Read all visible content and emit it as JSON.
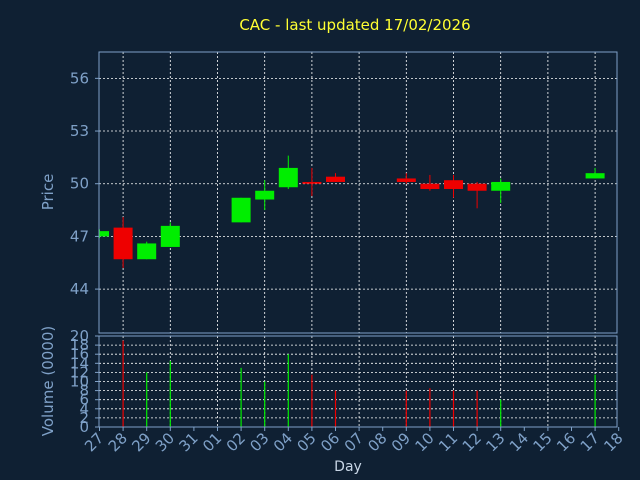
{
  "chart_data": {
    "type": "candlestick",
    "title": "CAC - last updated 17/02/2026",
    "price_panel": {
      "ylabel": "Price",
      "ylim": [
        41.5,
        57.5
      ],
      "yticks": [
        44,
        47,
        50,
        53,
        56
      ]
    },
    "volume_panel": {
      "ylabel": "Volume (0000)",
      "ylim": [
        0,
        20
      ],
      "yticks": [
        0,
        2,
        4,
        6,
        8,
        10,
        12,
        14,
        16,
        18,
        20
      ]
    },
    "xlabel": "Day",
    "x_tick_labels": [
      "27",
      "28",
      "29",
      "30",
      "31",
      "01",
      "02",
      "03",
      "04",
      "05",
      "06",
      "07",
      "08",
      "09",
      "10",
      "11",
      "12",
      "13",
      "14",
      "15",
      "16",
      "17",
      "18"
    ],
    "grid": true,
    "colors": {
      "background": "#0f2033",
      "axes": "#7fa1c8",
      "up": "#00ee00",
      "down": "#ee0000",
      "title": "#ffff33",
      "grid": "#ffffff"
    },
    "candles": [
      {
        "day": "27",
        "open": 47.0,
        "high": 47.4,
        "low": 46.9,
        "close": 47.3
      },
      {
        "day": "28",
        "open": 47.5,
        "high": 48.1,
        "low": 45.2,
        "close": 45.7
      },
      {
        "day": "29",
        "open": 45.7,
        "high": 46.7,
        "low": 45.7,
        "close": 46.6
      },
      {
        "day": "30",
        "open": 46.4,
        "high": 47.8,
        "low": 46.4,
        "close": 47.6
      },
      {
        "day": "02",
        "open": 47.8,
        "high": 49.2,
        "low": 47.8,
        "close": 49.2
      },
      {
        "day": "03",
        "open": 49.1,
        "high": 50.2,
        "low": 48.5,
        "close": 49.6
      },
      {
        "day": "04",
        "open": 49.8,
        "high": 51.6,
        "low": 49.7,
        "close": 50.9
      },
      {
        "day": "05",
        "open": 50.1,
        "high": 50.9,
        "low": 49.3,
        "close": 50.0
      },
      {
        "day": "06",
        "open": 50.4,
        "high": 50.6,
        "low": 50.1,
        "close": 50.1
      },
      {
        "day": "09",
        "open": 50.3,
        "high": 50.6,
        "low": 50.0,
        "close": 50.1
      },
      {
        "day": "10",
        "open": 50.0,
        "high": 50.5,
        "low": 49.6,
        "close": 49.7
      },
      {
        "day": "11",
        "open": 50.2,
        "high": 50.5,
        "low": 49.2,
        "close": 49.7
      },
      {
        "day": "12",
        "open": 50.0,
        "high": 50.1,
        "low": 48.6,
        "close": 49.6
      },
      {
        "day": "13",
        "open": 49.6,
        "high": 50.3,
        "low": 48.9,
        "close": 50.1
      },
      {
        "day": "17",
        "open": 50.3,
        "high": 50.9,
        "low": 50.3,
        "close": 50.6
      }
    ],
    "volume": [
      {
        "day": "28",
        "value": 19.0
      },
      {
        "day": "29",
        "value": 12.0
      },
      {
        "day": "30",
        "value": 14.5
      },
      {
        "day": "02",
        "value": 13.0
      },
      {
        "day": "03",
        "value": 10.0
      },
      {
        "day": "04",
        "value": 16.0
      },
      {
        "day": "05",
        "value": 11.5
      },
      {
        "day": "06",
        "value": 8.0
      },
      {
        "day": "09",
        "value": 8.0
      },
      {
        "day": "10",
        "value": 8.5
      },
      {
        "day": "11",
        "value": 8.0
      },
      {
        "day": "12",
        "value": 8.0
      },
      {
        "day": "13",
        "value": 6.0
      },
      {
        "day": "17",
        "value": 11.5
      }
    ]
  }
}
